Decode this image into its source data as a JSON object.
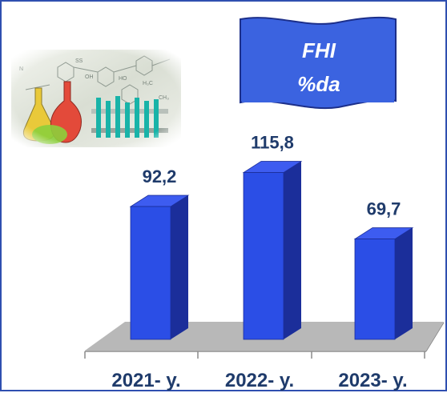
{
  "banner": {
    "line1": "FHI",
    "line2": "%da"
  },
  "colors": {
    "bar_front": "#2b4ee6",
    "bar_side": "#1b2e9a",
    "bar_top": "#3d5cf0",
    "floor": "#b8b8b8",
    "label": "#1f3b6b",
    "frame": "#2f4fb0",
    "banner": "#3b63e0"
  },
  "decor": {
    "image": "chemistry-lab-flasks"
  },
  "chart_data": {
    "type": "bar",
    "categories": [
      "2021- y.",
      "2022- y.",
      "2023- y."
    ],
    "values": [
      92.2,
      115.8,
      69.7
    ],
    "value_labels": [
      "92,2",
      "115,8",
      "69,7"
    ],
    "title": "",
    "xlabel": "",
    "ylabel": "",
    "ylim": [
      0,
      140
    ],
    "grid": false,
    "legend": "none"
  }
}
